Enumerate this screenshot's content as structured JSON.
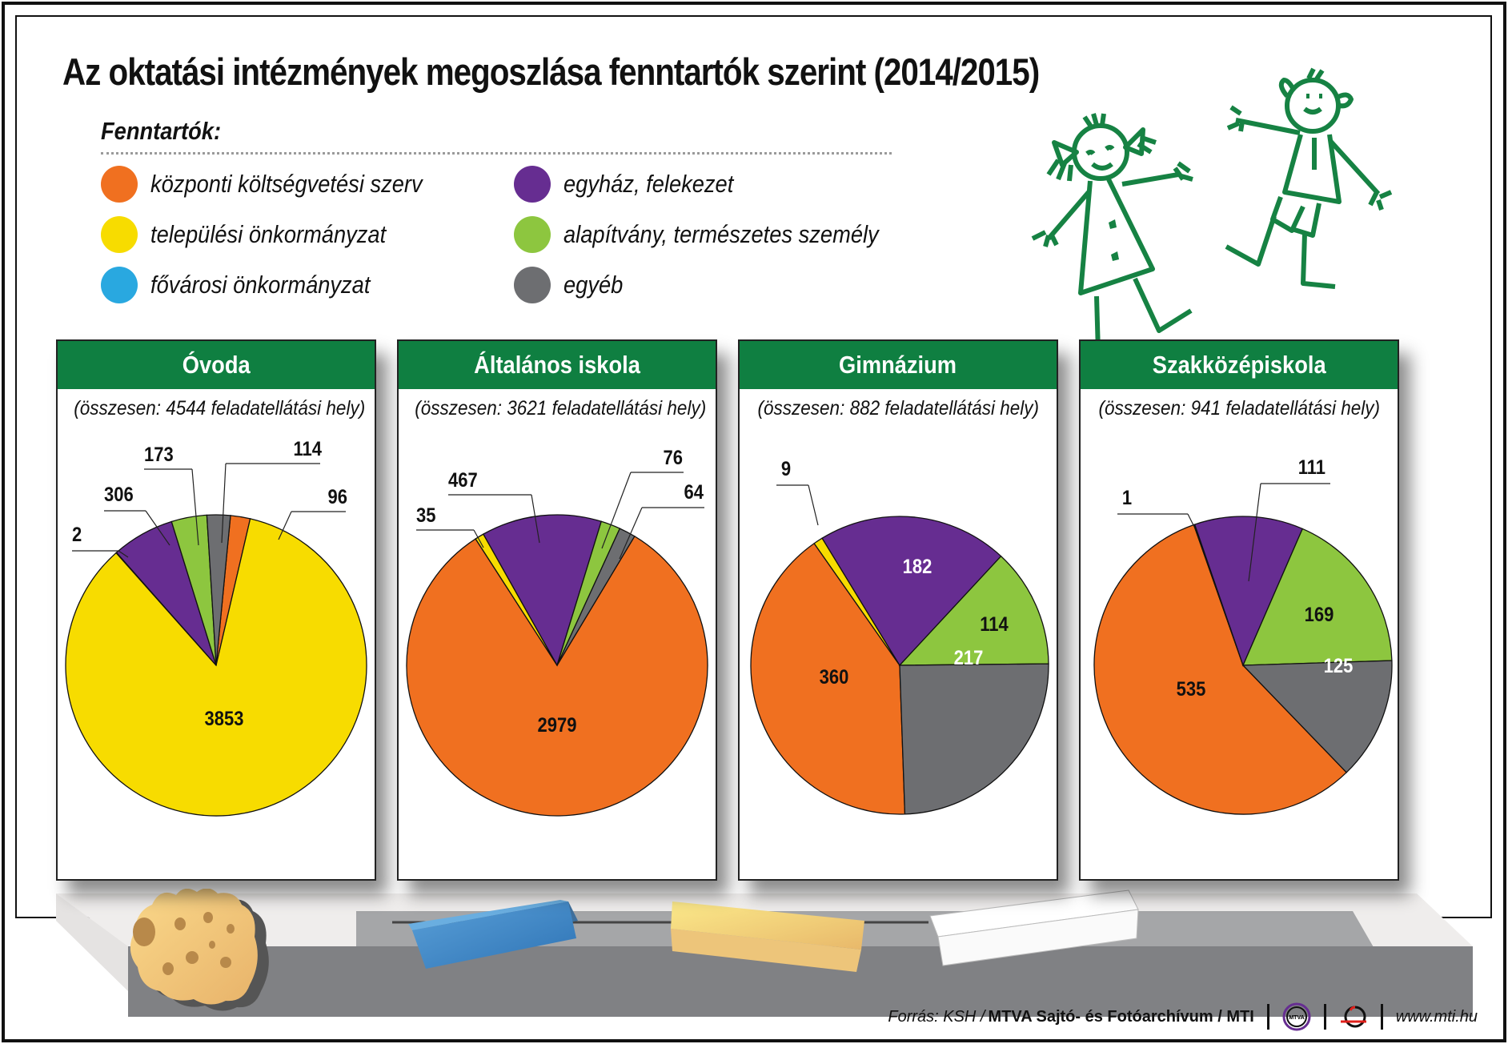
{
  "title": "Az oktatási intézmények megoszlása fenntartók szerint (2014/2015)",
  "legend": {
    "title": "Fenntartók:",
    "items": [
      {
        "key": "kozponti",
        "label": "központi költségvetési szerv",
        "color": "#f07020"
      },
      {
        "key": "telepulesi",
        "label": "települési önkormányzat",
        "color": "#f7dc00"
      },
      {
        "key": "fovarosi",
        "label": "fővárosi önkormányzat",
        "color": "#29a8e0"
      },
      {
        "key": "egyhaz",
        "label": "egyház, felekezet",
        "color": "#662d91"
      },
      {
        "key": "alapitvany",
        "label": "alapítvány, természetes személy",
        "color": "#8dc63f"
      },
      {
        "key": "egyeb",
        "label": "egyéb",
        "color": "#6d6e71"
      }
    ]
  },
  "panels": [
    {
      "title": "Óvoda",
      "subtitle": "(összesen: 4544 feladatellátási hely)"
    },
    {
      "title": "Általános iskola",
      "subtitle": "(összesen: 3621 feladatellátási hely)"
    },
    {
      "title": "Gimnázium",
      "subtitle": "(összesen: 882 feladatellátási hely)"
    },
    {
      "title": "Szakközépiskola",
      "subtitle": "(összesen: 941 feladatellátási hely)"
    }
  ],
  "footer": {
    "source_prefix": "Forrás: KSH / ",
    "source_bold": "MTVA Sajtó- és Fotóarchívum / MTI",
    "logo_mtva": "MTVA",
    "url": "www.mti.hu"
  },
  "chart_data": [
    {
      "type": "pie",
      "title": "Óvoda",
      "subtitle": "(összesen: 4544 feladatellátási hely)",
      "total": 4544,
      "start_angle_deg": 5.5,
      "categories": [
        "központi költségvetési szerv",
        "települési önkormányzat",
        "fővárosi önkormányzat",
        "egyház, felekezet",
        "alapítvány, természetes személy",
        "egyéb"
      ],
      "values": [
        96,
        3853,
        2,
        306,
        173,
        114
      ],
      "colors": [
        "#f07020",
        "#f7dc00",
        "#29a8e0",
        "#662d91",
        "#8dc63f",
        "#6d6e71"
      ]
    },
    {
      "type": "pie",
      "title": "Általános iskola",
      "subtitle": "(összesen: 3621 feladatellátási hely)",
      "total": 3621,
      "start_angle_deg": 31,
      "categories": [
        "központi költségvetési szerv",
        "települési önkormányzat",
        "fővárosi önkormányzat",
        "egyház, felekezet",
        "alapítvány, természetes személy",
        "egyéb"
      ],
      "values": [
        2979,
        35,
        0,
        467,
        76,
        64
      ],
      "colors": [
        "#f07020",
        "#f7dc00",
        "#29a8e0",
        "#662d91",
        "#8dc63f",
        "#6d6e71"
      ]
    },
    {
      "type": "pie",
      "title": "Gimnázium",
      "subtitle": "(összesen: 882 feladatellátási hely)",
      "total": 882,
      "start_angle_deg": 178,
      "categories": [
        "központi költségvetési szerv",
        "települési önkormányzat",
        "fővárosi önkormányzat",
        "egyház, felekezet",
        "alapítvány, természetes személy",
        "egyéb"
      ],
      "values": [
        360,
        9,
        0,
        182,
        114,
        217
      ],
      "colors": [
        "#f07020",
        "#f7dc00",
        "#29a8e0",
        "#662d91",
        "#8dc63f",
        "#6d6e71"
      ]
    },
    {
      "type": "pie",
      "title": "Szakközépiskola",
      "subtitle": "(összesen: 941 feladatellátási hely)",
      "total": 941,
      "start_angle_deg": 136,
      "categories": [
        "központi költségvetési szerv",
        "települési önkormányzat",
        "fővárosi önkormányzat",
        "egyház, felekezet",
        "alapítvány, természetes személy",
        "egyéb"
      ],
      "values": [
        535,
        1,
        0,
        111,
        169,
        125
      ],
      "colors": [
        "#f07020",
        "#f7dc00",
        "#29a8e0",
        "#662d91",
        "#8dc63f",
        "#6d6e71"
      ]
    }
  ]
}
